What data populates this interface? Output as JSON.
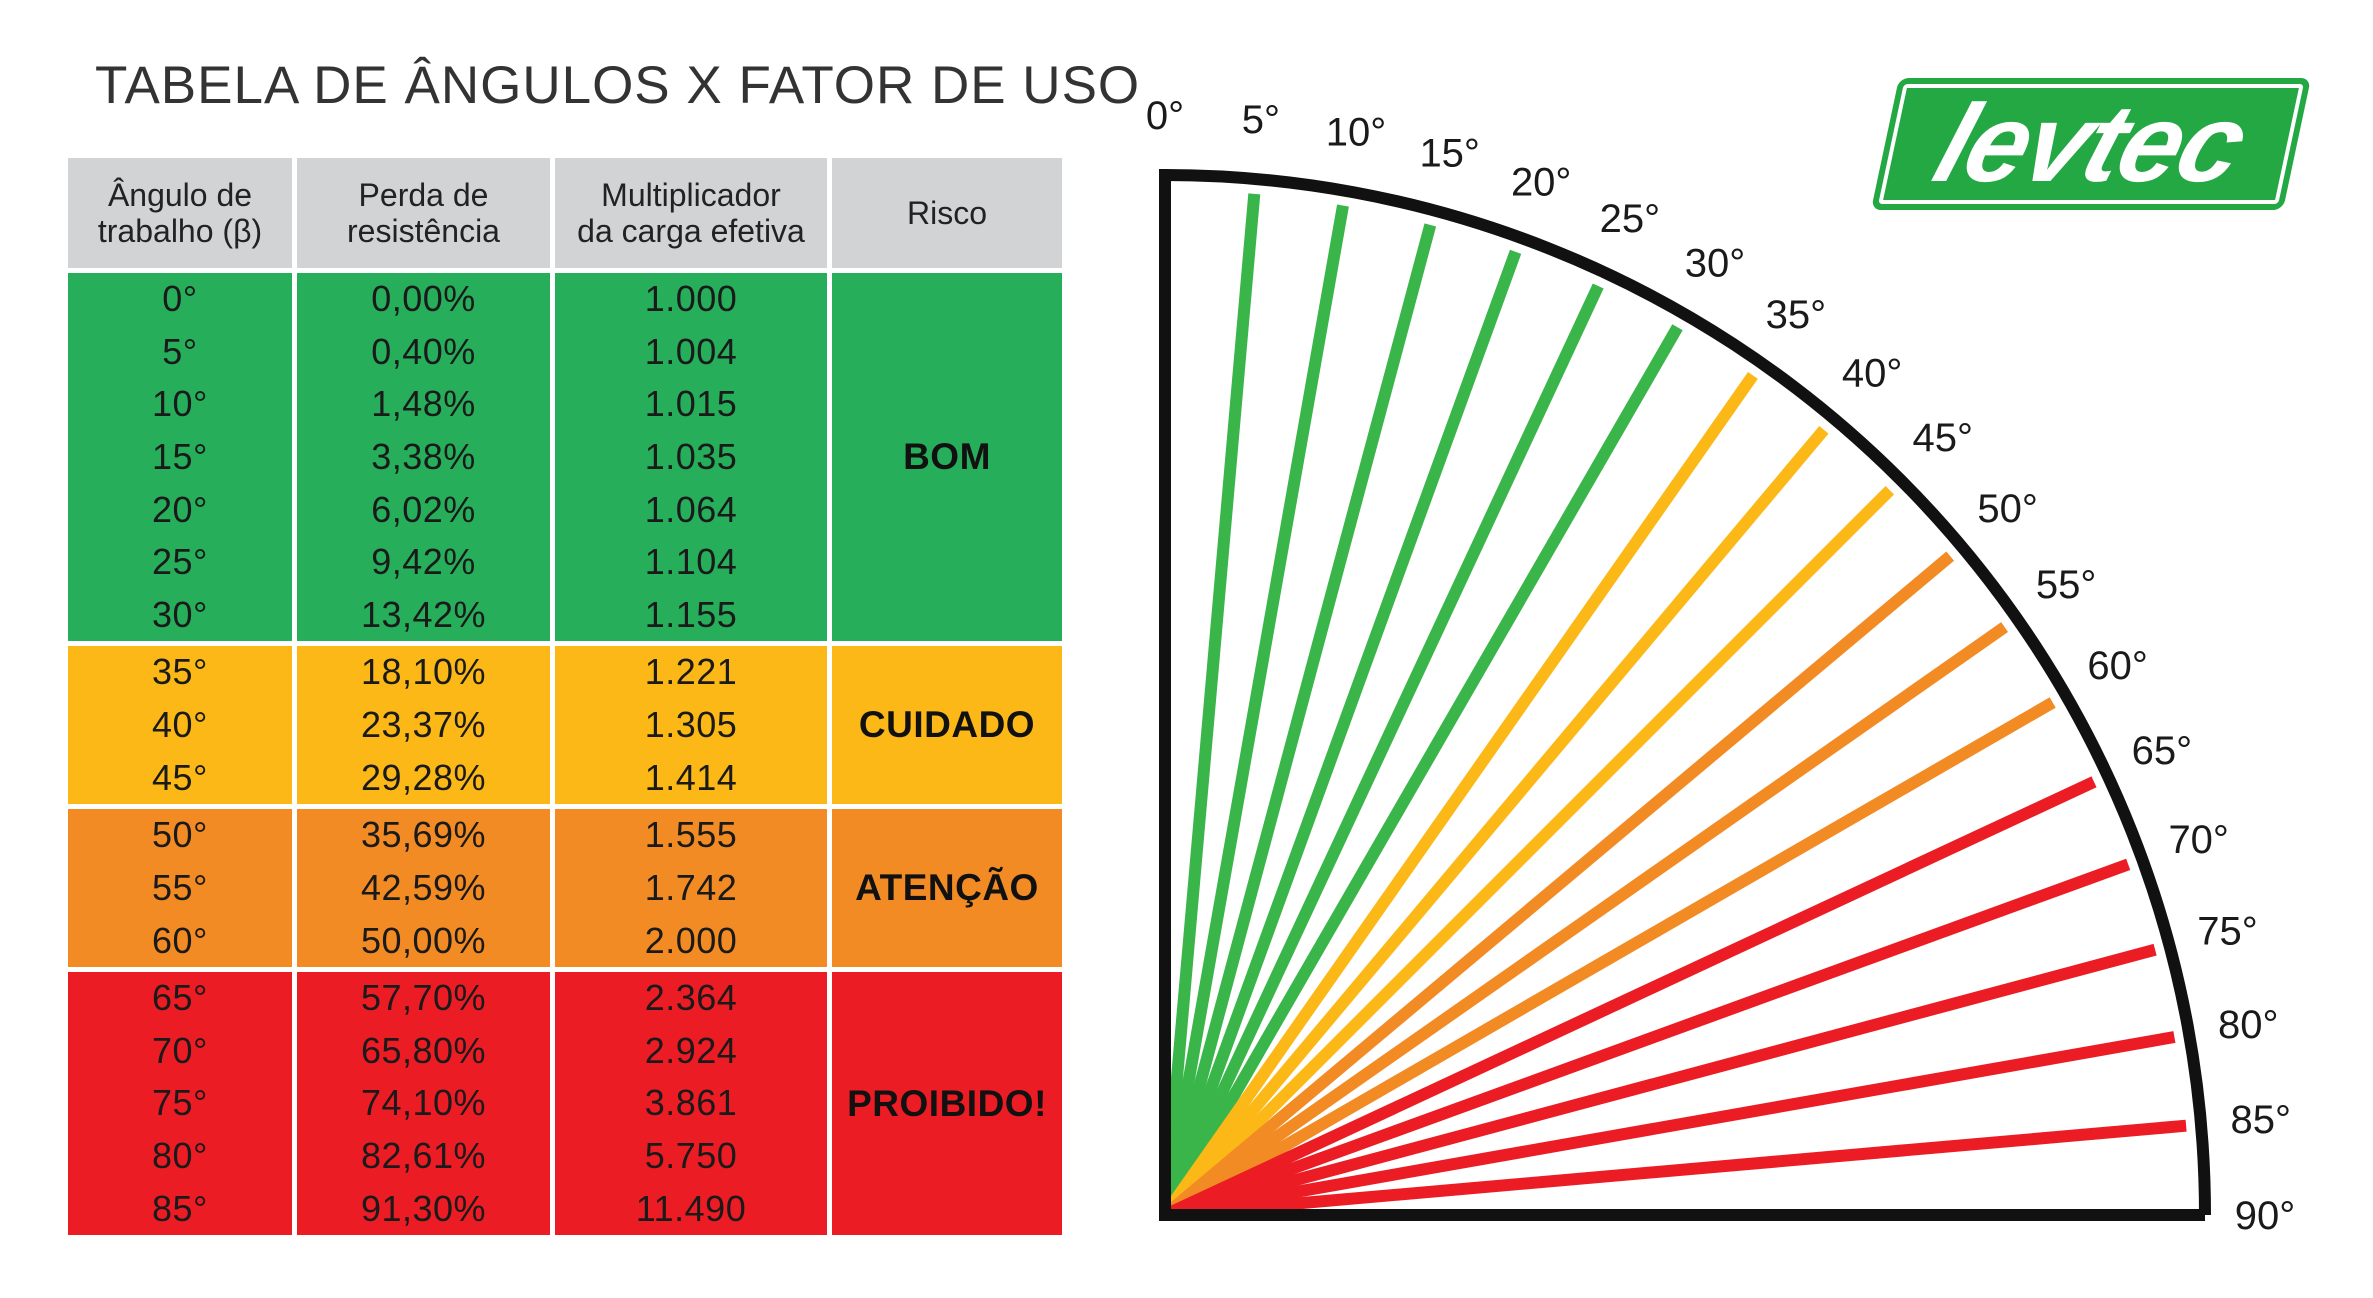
{
  "title": "TABELA DE ÂNGULOS X FATOR DE USO",
  "logo_text": "levtec",
  "colors": {
    "header_bg": "#d2d3d5",
    "bom": "#27ae5b",
    "cuidado": "#fbb817",
    "atencao": "#f38b24",
    "proibido": "#ec1c24",
    "logo_green": "#23a843",
    "arc": "#111111"
  },
  "table": {
    "headers": [
      "Ângulo de\ntrabalho (β)",
      "Perda de\nresistência",
      "Multiplicador\nda carga efetiva",
      "Risco"
    ],
    "groups": [
      {
        "risk": "BOM",
        "color_key": "bom",
        "rows": [
          [
            "0°",
            "0,00%",
            "1.000"
          ],
          [
            "5°",
            "0,40%",
            "1.004"
          ],
          [
            "10°",
            "1,48%",
            "1.015"
          ],
          [
            "15°",
            "3,38%",
            "1.035"
          ],
          [
            "20°",
            "6,02%",
            "1.064"
          ],
          [
            "25°",
            "9,42%",
            "1.104"
          ],
          [
            "30°",
            "13,42%",
            "1.155"
          ]
        ]
      },
      {
        "risk": "CUIDADO",
        "color_key": "cuidado",
        "rows": [
          [
            "35°",
            "18,10%",
            "1.221"
          ],
          [
            "40°",
            "23,37%",
            "1.305"
          ],
          [
            "45°",
            "29,28%",
            "1.414"
          ]
        ]
      },
      {
        "risk": "ATENÇÃO",
        "color_key": "atencao",
        "rows": [
          [
            "50°",
            "35,69%",
            "1.555"
          ],
          [
            "55°",
            "42,59%",
            "1.742"
          ],
          [
            "60°",
            "50,00%",
            "2.000"
          ]
        ]
      },
      {
        "risk": "PROIBIDO!",
        "color_key": "proibido",
        "rows": [
          [
            "65°",
            "57,70%",
            "2.364"
          ],
          [
            "70°",
            "65,80%",
            "2.924"
          ],
          [
            "75°",
            "74,10%",
            "3.861"
          ],
          [
            "80°",
            "82,61%",
            "5.750"
          ],
          [
            "85°",
            "91,30%",
            "11.490"
          ]
        ]
      }
    ]
  },
  "chart_data": {
    "type": "radial-angle-diagram",
    "title": "",
    "angles": [
      0,
      5,
      10,
      15,
      20,
      25,
      30,
      35,
      40,
      45,
      50,
      55,
      60,
      65,
      70,
      75,
      80,
      85,
      90
    ],
    "angle_labels": [
      "0°",
      "5°",
      "10°",
      "15°",
      "20°",
      "25°",
      "30°",
      "35°",
      "40°",
      "45°",
      "50°",
      "55°",
      "60°",
      "65°",
      "70°",
      "75°",
      "80°",
      "85°",
      "90°"
    ],
    "risk_bands": [
      {
        "name": "BOM",
        "from": 0,
        "to": 30,
        "color": "#3ab54a"
      },
      {
        "name": "CUIDADO",
        "from": 35,
        "to": 45,
        "color": "#fbb817"
      },
      {
        "name": "ATENÇÃO",
        "from": 50,
        "to": 60,
        "color": "#f38b24"
      },
      {
        "name": "PROIBIDO!",
        "from": 65,
        "to": 85,
        "color": "#ec1c24"
      }
    ]
  }
}
